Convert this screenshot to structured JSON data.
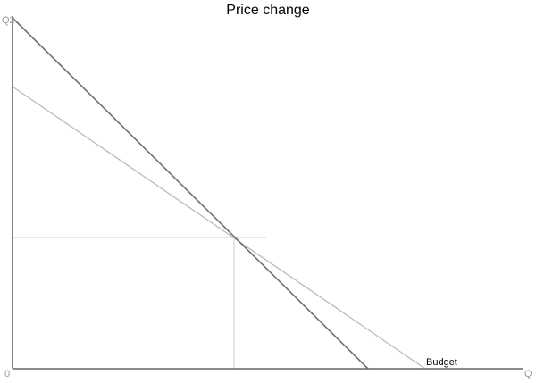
{
  "title": "Price change",
  "y_axis_label": "Q2",
  "x_axis_label": "Q",
  "origin_label": "0",
  "line_label": "Budget",
  "colors": {
    "axis": "#666666",
    "original_budget_line": "#707070",
    "new_budget_line": "#bbbbbb",
    "guide_lines": "#cccccc"
  }
}
